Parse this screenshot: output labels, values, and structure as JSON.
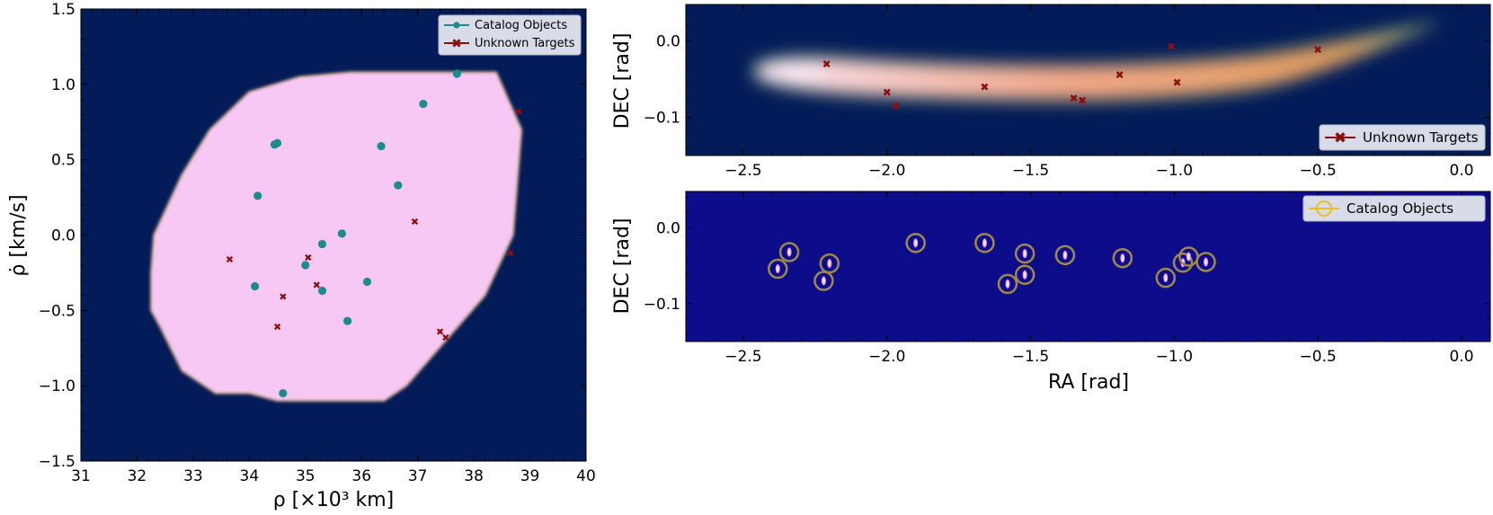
{
  "colors": {
    "background": "#031b58",
    "background_bottom": "#0d0d8c",
    "region_fill": "#f8c8f4",
    "catalog_marker": "#1b8c8c",
    "unknown_marker": "#8b0f0f",
    "circle_marker": "#a08848",
    "legend_bg": "#d8dbe8"
  },
  "chart_data": [
    {
      "type": "scatter",
      "name": "left-panel",
      "xlabel": "ρ [×10³ km]",
      "ylabel": "ρ̇ [km/s]",
      "xlim": [
        31,
        40
      ],
      "ylim": [
        -1.5,
        1.5
      ],
      "xticks": [
        "31",
        "32",
        "33",
        "34",
        "35",
        "36",
        "37",
        "38",
        "39",
        "40"
      ],
      "xtick_values": [
        31,
        32,
        33,
        34,
        35,
        36,
        37,
        38,
        39,
        40
      ],
      "yticks": [
        "−1.5",
        "−1.0",
        "−0.5",
        "0.0",
        "0.5",
        "1.0",
        "1.5"
      ],
      "ytick_values": [
        -1.5,
        -1.0,
        -0.5,
        0.0,
        0.5,
        1.0,
        1.5
      ],
      "region_polygon": [
        [
          32.25,
          -0.25
        ],
        [
          32.3,
          0.0
        ],
        [
          32.8,
          0.4
        ],
        [
          33.3,
          0.7
        ],
        [
          34.0,
          0.95
        ],
        [
          34.9,
          1.05
        ],
        [
          35.8,
          1.08
        ],
        [
          38.4,
          1.08
        ],
        [
          38.85,
          0.7
        ],
        [
          38.7,
          0.0
        ],
        [
          38.2,
          -0.4
        ],
        [
          37.5,
          -0.7
        ],
        [
          36.8,
          -1.0
        ],
        [
          36.4,
          -1.1
        ],
        [
          34.5,
          -1.1
        ],
        [
          34.0,
          -1.05
        ],
        [
          33.4,
          -1.05
        ],
        [
          32.8,
          -0.9
        ],
        [
          32.4,
          -0.6
        ],
        [
          32.25,
          -0.5
        ]
      ],
      "series": [
        {
          "name": "Catalog Objects",
          "points": [
            [
              34.45,
              0.6
            ],
            [
              34.5,
              0.61
            ],
            [
              34.15,
              0.26
            ],
            [
              34.1,
              -0.34
            ],
            [
              35.0,
              -0.2
            ],
            [
              35.3,
              -0.06
            ],
            [
              35.65,
              0.01
            ],
            [
              35.3,
              -0.37
            ],
            [
              36.35,
              0.59
            ],
            [
              36.65,
              0.33
            ],
            [
              37.1,
              0.87
            ],
            [
              37.7,
              1.07
            ],
            [
              36.1,
              -0.31
            ],
            [
              35.75,
              -0.57
            ],
            [
              34.6,
              -1.05
            ]
          ]
        },
        {
          "name": "Unknown Targets",
          "points": [
            [
              33.65,
              -0.16
            ],
            [
              35.05,
              -0.15
            ],
            [
              35.2,
              -0.33
            ],
            [
              34.6,
              -0.41
            ],
            [
              34.5,
              -0.61
            ],
            [
              36.95,
              0.09
            ],
            [
              37.4,
              -0.64
            ],
            [
              37.5,
              -0.68
            ],
            [
              38.65,
              -0.12
            ],
            [
              38.8,
              0.82
            ]
          ]
        }
      ],
      "legend": [
        "Catalog Objects",
        "Unknown Targets"
      ]
    },
    {
      "type": "scatter",
      "name": "top-right-panel",
      "xlabel": "",
      "ylabel": "DEC [rad]",
      "xlim": [
        -2.7,
        0.1
      ],
      "ylim": [
        -0.15,
        0.048
      ],
      "xticks": [
        "−2.5",
        "−2.0",
        "−1.5",
        "−1.0",
        "−0.5",
        "0.0"
      ],
      "xtick_values": [
        -2.5,
        -2.0,
        -1.5,
        -1.0,
        -0.5,
        0.0
      ],
      "yticks": [
        "0.0",
        "−0.1"
      ],
      "ytick_values": [
        0.0,
        -0.1
      ],
      "series": [
        {
          "name": "Unknown Targets",
          "points": [
            [
              -2.21,
              -0.03
            ],
            [
              -2.0,
              -0.067
            ],
            [
              -1.97,
              -0.085
            ],
            [
              -1.66,
              -0.06
            ],
            [
              -1.35,
              -0.075
            ],
            [
              -1.32,
              -0.078
            ],
            [
              -1.19,
              -0.044
            ],
            [
              -1.01,
              -0.007
            ],
            [
              -0.99,
              -0.054
            ],
            [
              -0.5,
              -0.011
            ]
          ]
        }
      ],
      "legend": [
        "Unknown Targets"
      ]
    },
    {
      "type": "scatter",
      "name": "bottom-right-panel",
      "xlabel": "RA [rad]",
      "ylabel": "DEC [rad]",
      "xlim": [
        -2.7,
        0.1
      ],
      "ylim": [
        -0.15,
        0.048
      ],
      "xticks": [
        "−2.5",
        "−2.0",
        "−1.5",
        "−1.0",
        "−0.5",
        "0.0"
      ],
      "xtick_values": [
        -2.5,
        -2.0,
        -1.5,
        -1.0,
        -0.5,
        0.0
      ],
      "yticks": [
        "0.0",
        "−0.1"
      ],
      "ytick_values": [
        0.0,
        -0.1
      ],
      "series": [
        {
          "name": "Catalog Objects",
          "points": [
            [
              -2.38,
              -0.054
            ],
            [
              -2.34,
              -0.032
            ],
            [
              -2.22,
              -0.07
            ],
            [
              -2.2,
              -0.047
            ],
            [
              -1.9,
              -0.02
            ],
            [
              -1.66,
              -0.02
            ],
            [
              -1.58,
              -0.074
            ],
            [
              -1.52,
              -0.034
            ],
            [
              -1.52,
              -0.062
            ],
            [
              -1.38,
              -0.036
            ],
            [
              -1.18,
              -0.04
            ],
            [
              -1.03,
              -0.066
            ],
            [
              -0.97,
              -0.046
            ],
            [
              -0.95,
              -0.038
            ],
            [
              -0.89,
              -0.045
            ]
          ]
        }
      ],
      "legend": [
        "Catalog Objects"
      ]
    }
  ]
}
